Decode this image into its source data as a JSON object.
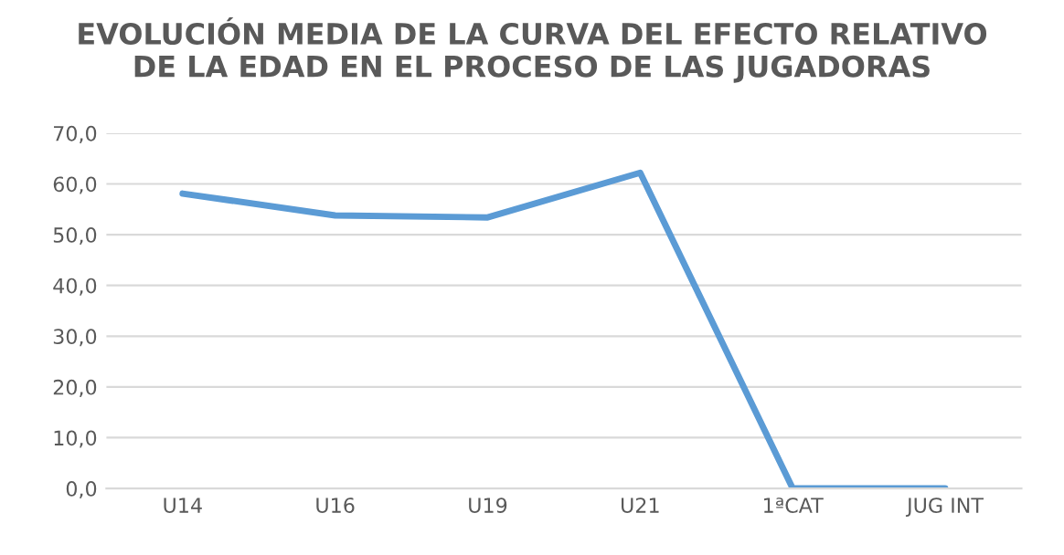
{
  "chart_data": {
    "type": "line",
    "title": "EVOLUCIÓN MEDIA DE LA CURVA DEL EFECTO RELATIVO\nDE LA EDAD EN EL PROCESO DE LAS JUGADORAS",
    "categories": [
      "U14",
      "U16",
      "U19",
      "U21",
      "1ªCAT",
      "JUG INT"
    ],
    "series": [
      {
        "color": "#5b9bd5",
        "values": [
          58.1,
          53.8,
          53.4,
          62.2,
          0,
          0
        ]
      }
    ],
    "ylim": [
      0,
      70
    ],
    "yticks": [
      {
        "value": 0,
        "label": "0,0"
      },
      {
        "value": 10,
        "label": "10,0"
      },
      {
        "value": 20,
        "label": "20,0"
      },
      {
        "value": 30,
        "label": "30,0"
      },
      {
        "value": 40,
        "label": "40,0"
      },
      {
        "value": 50,
        "label": "50,0"
      },
      {
        "value": 60,
        "label": "60,0"
      },
      {
        "value": 70,
        "label": "70,0"
      }
    ],
    "grid": "y",
    "marker": "none",
    "line_style": "solid"
  }
}
